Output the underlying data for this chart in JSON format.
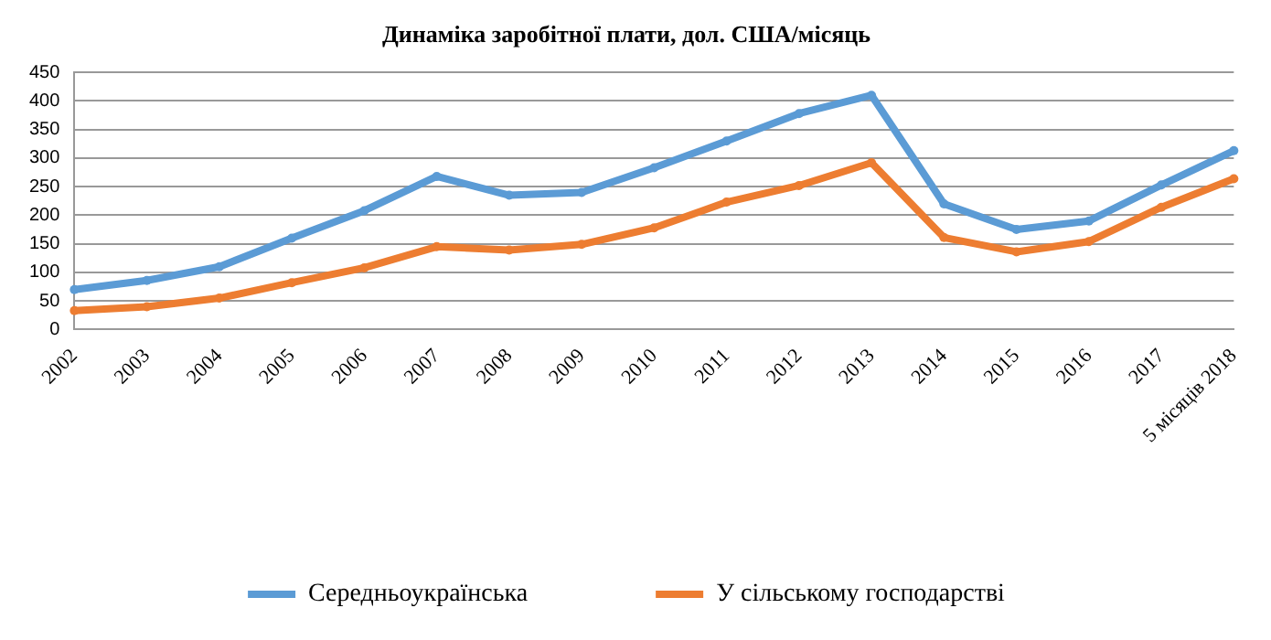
{
  "chart_data": {
    "type": "line",
    "title": "Динаміка заробітної плати, дол. США/місяць",
    "categories": [
      "2002",
      "2003",
      "2004",
      "2005",
      "2006",
      "2007",
      "2008",
      "2009",
      "2010",
      "2011",
      "2012",
      "2013",
      "2014",
      "2015",
      "2016",
      "2017",
      "5 місяців 2018"
    ],
    "series": [
      {
        "name": "Середньоукраїнська",
        "color": "#5b9bd5",
        "values": [
          70,
          86,
          110,
          160,
          208,
          268,
          235,
          240,
          283,
          330,
          378,
          410,
          220,
          175,
          190,
          253,
          313
        ]
      },
      {
        "name": "У сільському господарстві",
        "color": "#ed7d31",
        "values": [
          33,
          40,
          55,
          82,
          108,
          145,
          139,
          149,
          178,
          223,
          252,
          292,
          161,
          136,
          154,
          214,
          264
        ]
      }
    ],
    "ylim": [
      0,
      450
    ],
    "yticks": [
      0,
      50,
      100,
      150,
      200,
      250,
      300,
      350,
      400,
      450
    ],
    "grid": "y",
    "legend": "bottom",
    "marker": "circle",
    "line_style": "solid"
  }
}
